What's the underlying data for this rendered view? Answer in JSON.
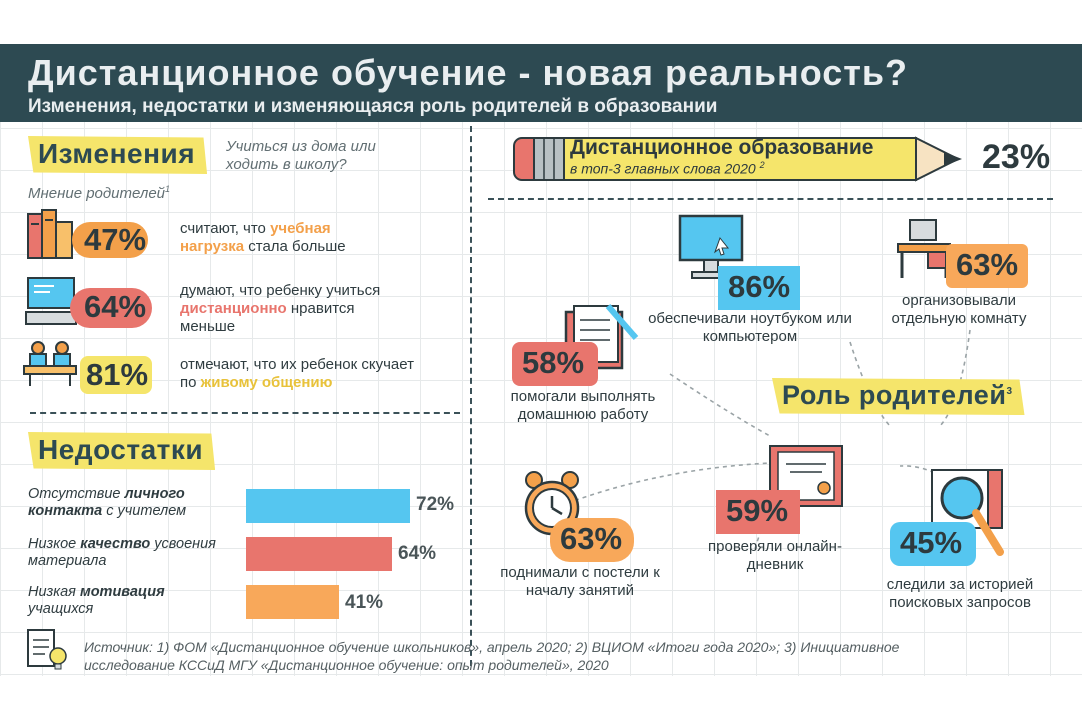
{
  "header": {
    "title": "Дистанционное обучение - новая реальность?",
    "subtitle": "Изменения, недостатки и изменяющаяся роль родителей в образовании"
  },
  "changes": {
    "tag": "Изменения",
    "question": "Учиться из дома или ходить в школу?",
    "opinion_label": "Мнение родителей",
    "opinion_ref": "1",
    "items": [
      {
        "percent": "47%",
        "pre": "считают, что ",
        "highlight": "учебная нагрузка",
        "post": " стала больше",
        "color": "#f3a04a",
        "icon": "books-icon"
      },
      {
        "percent": "64%",
        "pre": "думают, что ребенку учиться ",
        "highlight": "дистанционно",
        "post": " нравится меньше",
        "color": "#e8756d",
        "icon": "computer-icon"
      },
      {
        "percent": "81%",
        "pre": "отмечают, что их ребенок скучает по ",
        "highlight": "живому общению",
        "post": "",
        "color": "#f5e56b",
        "icon": "classroom-icon"
      }
    ]
  },
  "drawbacks": {
    "tag": "Недостатки",
    "items": [
      {
        "pre": "Отсутствие ",
        "bold": "личного контакта",
        "post": " с учителем",
        "value": 72,
        "label": "72%",
        "color": "#55c6f0"
      },
      {
        "pre": "Низкое ",
        "bold": "качество",
        "post": " усвоения материала",
        "value": 64,
        "label": "64%",
        "color": "#e8756d"
      },
      {
        "pre": "Низкая ",
        "bold": "мотивация",
        "post": " учащихся",
        "value": 41,
        "label": "41%",
        "color": "#f8a85a"
      }
    ]
  },
  "pencil": {
    "title": "Дистанционное образование",
    "subtitle": "в топ-3 главных слова 2020",
    "ref": "2",
    "percent": "23%"
  },
  "roles": {
    "tag": "Роль родителей",
    "ref": "3",
    "items": [
      {
        "percent": "86%",
        "label": "обеспечивали ноутбуком или компьютером",
        "color": "#55c6f0",
        "icon": "monitor-icon"
      },
      {
        "percent": "63%",
        "label": "организовывали отдельную комнату",
        "color": "#f8a85a",
        "icon": "desk-icon"
      },
      {
        "percent": "58%",
        "label": "помогали выполнять домашнюю работу",
        "color": "#e8756d",
        "icon": "notebook-icon"
      },
      {
        "percent": "63%",
        "label": "поднимали с постели к началу занятий",
        "color": "#f8a85a",
        "icon": "alarm-clock-icon"
      },
      {
        "percent": "59%",
        "label": "проверяли онлайн-дневник",
        "color": "#e8756d",
        "icon": "diploma-icon"
      },
      {
        "percent": "45%",
        "label": "следили за историей поисковых запросов",
        "color": "#55c6f0",
        "icon": "magnifier-icon"
      }
    ]
  },
  "source": {
    "line1": "Источник: 1) ФОМ «Дистанционное обучение школьников», апрель 2020; 2) ВЦИОМ «Итоги года 2020»; 3) Инициативное",
    "line2": "исследование КССиД МГУ «Дистанционное обучение: опыт родителей», 2020",
    "icon": "document-bulb-icon"
  }
}
